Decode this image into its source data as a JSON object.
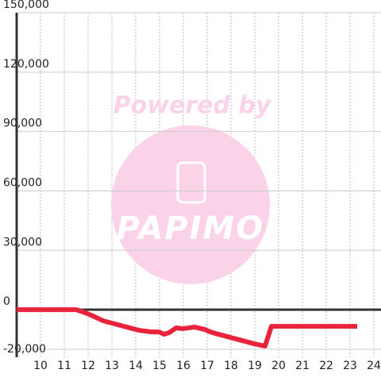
{
  "chart_data": {
    "type": "line",
    "watermark": {
      "line1": "Powered by",
      "line2": "PAPIMO"
    },
    "x": [
      9,
      11.5,
      11.8,
      12.13,
      12.63,
      13.13,
      13.63,
      14.13,
      14.63,
      14.97,
      15.2,
      15.4,
      15.7,
      15.97,
      16.47,
      16.9,
      17.13,
      17.47,
      17.97,
      18.47,
      18.97,
      19.43,
      19.7,
      23.3
    ],
    "series": [
      {
        "color": "#e8243c",
        "values": [
          0,
          0,
          -1200,
          -2800,
          -5600,
          -7200,
          -8800,
          -10400,
          -11200,
          -11200,
          -12400,
          -11600,
          -9200,
          -9600,
          -8800,
          -10000,
          -11200,
          -12400,
          -14000,
          -15600,
          -17200,
          -18400,
          -8400,
          -8400
        ]
      }
    ],
    "xlim": [
      9,
      24.3
    ],
    "xticks": [
      10,
      11,
      12,
      13,
      14,
      15,
      16,
      17,
      18,
      19,
      20,
      21,
      22,
      23,
      24
    ],
    "ylim": [
      -24000,
      150000
    ],
    "yticks": [
      {
        "value": -20000,
        "label": "-20,000"
      },
      0,
      {
        "value": 30000,
        "label": "30,000"
      },
      {
        "value": 60000,
        "label": "60,000"
      },
      {
        "value": 90000,
        "label": "90,000"
      },
      {
        "value": 120000,
        "label": "120,000"
      },
      {
        "value": 150000,
        "label": "150,000"
      }
    ],
    "grid": true
  }
}
